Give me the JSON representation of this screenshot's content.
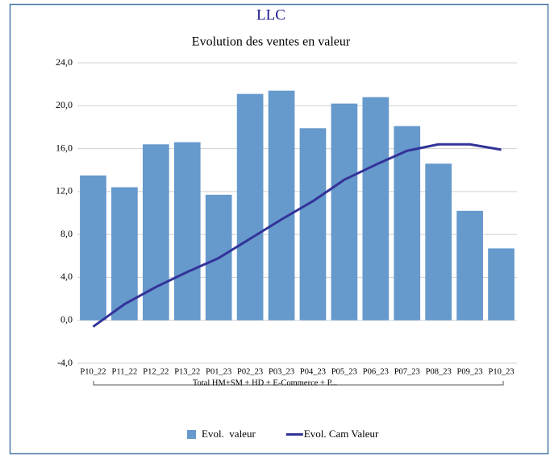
{
  "chart_data": {
    "type": "bar",
    "title": "LLC",
    "subtitle": "Evolution des ventes en valeur",
    "categories": [
      "P10_22",
      "P11_22",
      "P12_22",
      "P13_22",
      "P01_23",
      "P02_23",
      "P03_23",
      "P04_23",
      "P05_23",
      "P06_23",
      "P07_23",
      "P08_23",
      "P09_23",
      "P10_23"
    ],
    "group_label": "Total HM+SM + HD + E-Commerce + P...",
    "series": [
      {
        "name": "Evol.  valeur",
        "type": "bar",
        "color": "#6699cc",
        "values": [
          13.5,
          12.4,
          16.4,
          16.6,
          11.7,
          21.1,
          21.4,
          17.9,
          20.2,
          20.8,
          18.1,
          14.6,
          10.2,
          6.7
        ]
      },
      {
        "name": "Evol. Cam Valeur",
        "type": "line",
        "color": "#333399",
        "values": [
          -0.6,
          1.5,
          3.1,
          4.5,
          5.8,
          7.6,
          9.4,
          11.1,
          13.1,
          14.5,
          15.8,
          16.4,
          16.4,
          15.9
        ]
      }
    ],
    "ylim": [
      -4,
      24
    ],
    "yticks": [
      {
        "value": -4,
        "label": "-4,0"
      },
      {
        "value": 0,
        "label": "0,0"
      },
      {
        "value": 4,
        "label": "4,0"
      },
      {
        "value": 8,
        "label": "8,0"
      },
      {
        "value": 12,
        "label": "12,0"
      },
      {
        "value": 16,
        "label": "16,0"
      },
      {
        "value": 20,
        "label": "20,0"
      },
      {
        "value": 24,
        "label": "24,0"
      }
    ],
    "grid": true,
    "legend": "bottom"
  }
}
